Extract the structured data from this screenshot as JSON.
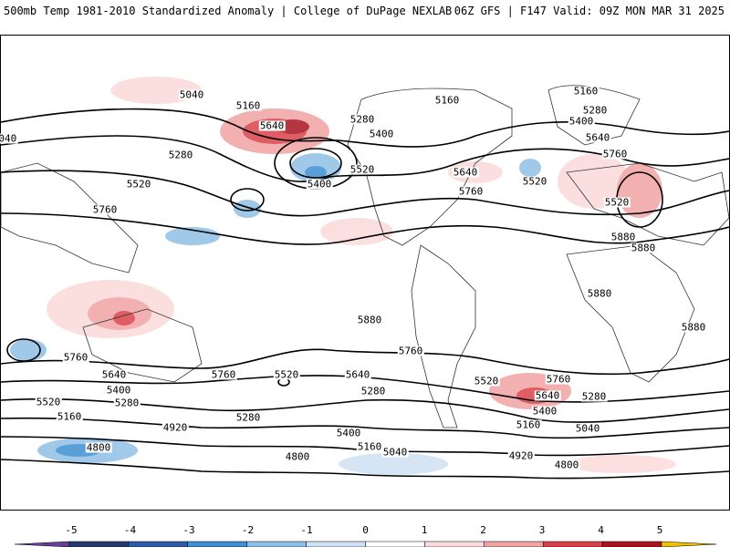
{
  "header": {
    "title": "500mb Temp 1981-2010 Standardized Anomaly | College of DuPage NEXLAB",
    "run": "06Z GFS | F147 Valid: 09Z MON MAR 31 2025"
  },
  "contour_labels": [
    "5040",
    "5160",
    "5640",
    "5400",
    "5280",
    "5520",
    "5760",
    "5880",
    "4920",
    "4800"
  ],
  "colorbar": {
    "ticks": [
      "-5",
      "-4",
      "-3",
      "-2",
      "-1",
      "0",
      "1",
      "2",
      "3",
      "4",
      "5"
    ],
    "colors": [
      "#6a3d9a",
      "#233a6b",
      "#2f5ba8",
      "#3f8fd2",
      "#8fbfe6",
      "#cfe1f2",
      "#ffffff",
      "#fbdada",
      "#f0a3a3",
      "#d9424a",
      "#a8141f",
      "#6e0a12",
      "#f2c200"
    ]
  }
}
